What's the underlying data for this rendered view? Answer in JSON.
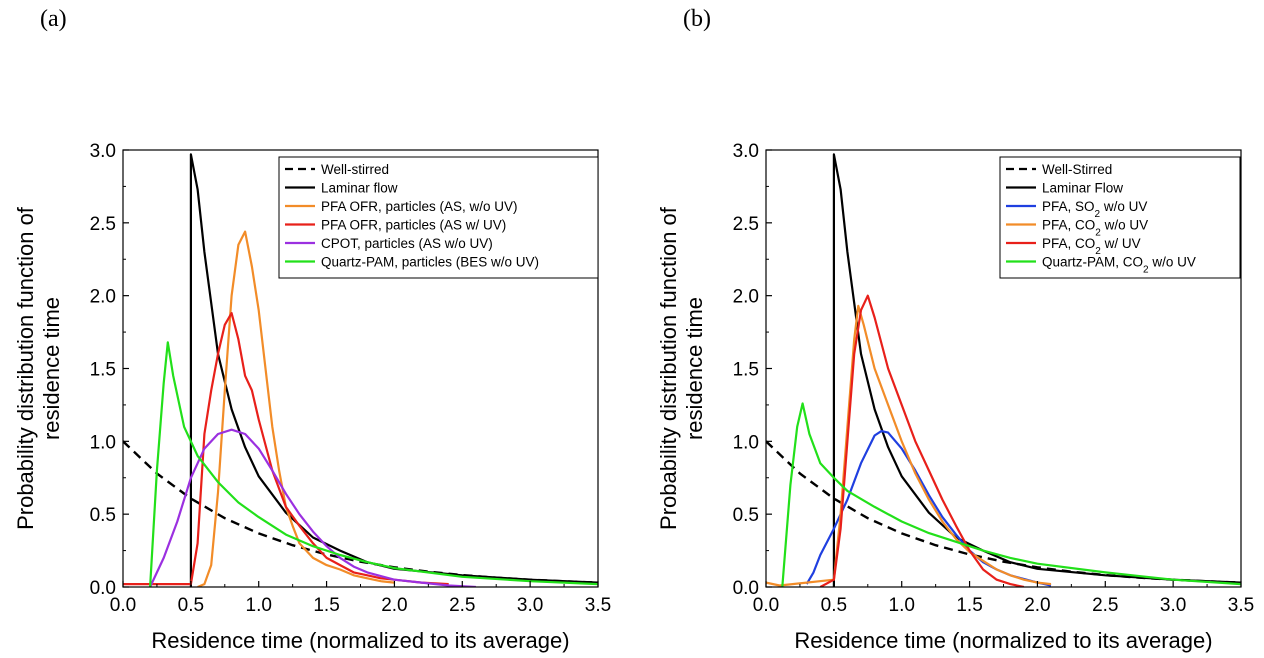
{
  "panels": [
    {
      "letter": "(a)",
      "chart_data": {
        "type": "line",
        "xlabel": "Residence time (normalized to its average)",
        "ylabel": [
          "Probability distribution function of",
          "residence time"
        ],
        "xlim": [
          0,
          3.5
        ],
        "ylim": [
          0,
          3.0
        ],
        "xticks": [
          0.0,
          0.5,
          1.0,
          1.5,
          2.0,
          2.5,
          3.0,
          3.5
        ],
        "yticks": [
          0.0,
          0.5,
          1.0,
          1.5,
          2.0,
          2.5,
          3.0
        ],
        "xtick_labels": [
          "0.0",
          "0.5",
          "1.0",
          "1.5",
          "2.0",
          "2.5",
          "3.0",
          "3.5"
        ],
        "ytick_labels": [
          "0.0",
          "0.5",
          "1.0",
          "1.5",
          "2.0",
          "2.5",
          "3.0"
        ],
        "grid": false,
        "legend_position": "top-right",
        "series": [
          {
            "name": "Well-stirred",
            "color": "#000000",
            "dash": true,
            "x": [
              0,
              0.25,
              0.5,
              0.75,
              1.0,
              1.25,
              1.5,
              1.75,
              2.0,
              2.25,
              2.5,
              2.75,
              3.0,
              3.25,
              3.5
            ],
            "y": [
              1.0,
              0.779,
              0.607,
              0.472,
              0.368,
              0.287,
              0.223,
              0.174,
              0.135,
              0.105,
              0.082,
              0.064,
              0.05,
              0.039,
              0.03
            ]
          },
          {
            "name": "Laminar flow",
            "color": "#000000",
            "dash": false,
            "x": [
              0.5,
              0.5,
              0.55,
              0.6,
              0.7,
              0.8,
              0.9,
              1.0,
              1.2,
              1.4,
              1.6,
              1.8,
              2.0,
              2.5,
              3.0,
              3.5
            ],
            "y": [
              0,
              2.97,
              2.73,
              2.3,
              1.6,
              1.22,
              0.96,
              0.76,
              0.51,
              0.34,
              0.25,
              0.17,
              0.125,
              0.08,
              0.05,
              0.03
            ]
          },
          {
            "name": "PFA OFR, particles (AS, w/o UV)",
            "color": "#f28c28",
            "dash": false,
            "x": [
              0.55,
              0.6,
              0.65,
              0.7,
              0.75,
              0.8,
              0.85,
              0.9,
              0.95,
              1.0,
              1.05,
              1.1,
              1.15,
              1.2,
              1.25,
              1.3,
              1.4,
              1.5,
              1.6,
              1.7,
              1.8,
              1.9,
              2.0
            ],
            "y": [
              0,
              0.02,
              0.15,
              0.65,
              1.35,
              2.0,
              2.35,
              2.44,
              2.2,
              1.9,
              1.5,
              1.1,
              0.8,
              0.55,
              0.42,
              0.3,
              0.2,
              0.15,
              0.12,
              0.08,
              0.06,
              0.04,
              0.03
            ]
          },
          {
            "name": "PFA OFR, particles (AS w/ UV)",
            "color": "#e8201a",
            "dash": false,
            "x": [
              0,
              0.5,
              0.55,
              0.6,
              0.65,
              0.7,
              0.75,
              0.8,
              0.85,
              0.9,
              0.95,
              1.0,
              1.1,
              1.2,
              1.3,
              1.4,
              1.5,
              1.6,
              1.7,
              1.8,
              1.9,
              2.0,
              2.2,
              2.4
            ],
            "y": [
              0.02,
              0.02,
              0.3,
              1.05,
              1.35,
              1.6,
              1.8,
              1.88,
              1.7,
              1.45,
              1.35,
              1.15,
              0.8,
              0.55,
              0.42,
              0.3,
              0.2,
              0.15,
              0.1,
              0.08,
              0.06,
              0.05,
              0.03,
              0.02
            ]
          },
          {
            "name": "CPOT, particles (AS w/o UV)",
            "color": "#9b30e0",
            "dash": false,
            "x": [
              0.2,
              0.3,
              0.4,
              0.5,
              0.6,
              0.7,
              0.8,
              0.9,
              1.0,
              1.1,
              1.2,
              1.3,
              1.4,
              1.5,
              1.6,
              1.7,
              1.8,
              2.0,
              2.2,
              2.4,
              2.6
            ],
            "y": [
              0,
              0.2,
              0.45,
              0.75,
              0.95,
              1.05,
              1.08,
              1.05,
              0.95,
              0.8,
              0.64,
              0.5,
              0.38,
              0.28,
              0.2,
              0.14,
              0.1,
              0.05,
              0.03,
              0.01,
              0
            ]
          },
          {
            "name": "Quartz-PAM, particles (BES w/o UV)",
            "color": "#22e01a",
            "dash": false,
            "x": [
              0.2,
              0.25,
              0.3,
              0.33,
              0.37,
              0.45,
              0.55,
              0.7,
              0.85,
              1.0,
              1.2,
              1.4,
              1.6,
              1.8,
              2.0,
              2.5,
              3.0,
              3.5
            ],
            "y": [
              0,
              0.8,
              1.4,
              1.68,
              1.45,
              1.1,
              0.9,
              0.72,
              0.58,
              0.48,
              0.36,
              0.28,
              0.22,
              0.17,
              0.13,
              0.07,
              0.04,
              0.02
            ]
          }
        ]
      }
    },
    {
      "letter": "(b)",
      "chart_data": {
        "type": "line",
        "xlabel": "Residence time (normalized to its average)",
        "ylabel": [
          "Probability distribution function of",
          "residence time"
        ],
        "xlim": [
          0,
          3.5
        ],
        "ylim": [
          0,
          3.0
        ],
        "xticks": [
          0.0,
          0.5,
          1.0,
          1.5,
          2.0,
          2.5,
          3.0,
          3.5
        ],
        "yticks": [
          0.0,
          0.5,
          1.0,
          1.5,
          2.0,
          2.5,
          3.0
        ],
        "xtick_labels": [
          "0.0",
          "0.5",
          "1.0",
          "1.5",
          "2.0",
          "2.5",
          "3.0",
          "3.5"
        ],
        "ytick_labels": [
          "0.0",
          "0.5",
          "1.0",
          "1.5",
          "2.0",
          "2.5",
          "3.0"
        ],
        "grid": false,
        "legend_position": "top-right",
        "series": [
          {
            "name": "Well-Stirred",
            "color": "#000000",
            "dash": true,
            "x": [
              0,
              0.25,
              0.5,
              0.75,
              1.0,
              1.25,
              1.5,
              1.75,
              2.0,
              2.25,
              2.5,
              2.75,
              3.0,
              3.25,
              3.5
            ],
            "y": [
              1.0,
              0.779,
              0.607,
              0.472,
              0.368,
              0.287,
              0.223,
              0.174,
              0.135,
              0.105,
              0.082,
              0.064,
              0.05,
              0.039,
              0.03
            ]
          },
          {
            "name": "Laminar Flow",
            "color": "#000000",
            "dash": false,
            "x": [
              0.5,
              0.5,
              0.55,
              0.6,
              0.7,
              0.8,
              0.9,
              1.0,
              1.2,
              1.4,
              1.6,
              1.8,
              2.0,
              2.5,
              3.0,
              3.5
            ],
            "y": [
              0,
              2.97,
              2.73,
              2.3,
              1.6,
              1.22,
              0.96,
              0.76,
              0.51,
              0.34,
              0.25,
              0.17,
              0.125,
              0.08,
              0.05,
              0.03
            ]
          },
          {
            "name_parts": [
              "PFA, SO",
              "2",
              " w/o UV"
            ],
            "name": "PFA, SO2 w/o UV",
            "color": "#1f3fe0",
            "dash": false,
            "x": [
              0.3,
              0.35,
              0.4,
              0.5,
              0.6,
              0.7,
              0.8,
              0.85,
              0.9,
              1.0,
              1.1,
              1.2,
              1.3,
              1.4,
              1.5,
              1.6,
              1.7,
              1.8,
              2.0,
              2.1
            ],
            "y": [
              0.02,
              0.1,
              0.22,
              0.4,
              0.6,
              0.85,
              1.04,
              1.07,
              1.06,
              0.95,
              0.8,
              0.63,
              0.48,
              0.36,
              0.25,
              0.17,
              0.12,
              0.08,
              0.03,
              0.01
            ]
          },
          {
            "name_parts": [
              "PFA, CO",
              "2",
              " w/o UV"
            ],
            "name": "PFA, CO2 w/o UV",
            "color": "#f28c28",
            "dash": false,
            "x": [
              0,
              0.1,
              0.5,
              0.55,
              0.6,
              0.65,
              0.68,
              0.72,
              0.8,
              0.9,
              1.0,
              1.1,
              1.2,
              1.3,
              1.4,
              1.5,
              1.6,
              1.7,
              1.8,
              1.9,
              2.0,
              2.1
            ],
            "y": [
              0.03,
              0.01,
              0.05,
              0.5,
              1.1,
              1.7,
              1.93,
              1.8,
              1.5,
              1.25,
              1.0,
              0.78,
              0.6,
              0.45,
              0.33,
              0.24,
              0.18,
              0.12,
              0.08,
              0.05,
              0.03,
              0.02
            ]
          },
          {
            "name_parts": [
              "PFA, CO",
              "2",
              " w/ UV"
            ],
            "name": "PFA, CO2 w/ UV",
            "color": "#e8201a",
            "dash": false,
            "x": [
              0.4,
              0.5,
              0.55,
              0.6,
              0.65,
              0.7,
              0.75,
              0.8,
              0.9,
              1.0,
              1.1,
              1.2,
              1.3,
              1.4,
              1.5,
              1.6,
              1.7,
              1.8,
              1.9
            ],
            "y": [
              0,
              0.05,
              0.4,
              1.0,
              1.6,
              1.9,
              2.0,
              1.85,
              1.5,
              1.25,
              1.0,
              0.8,
              0.6,
              0.42,
              0.25,
              0.12,
              0.05,
              0.02,
              0
            ]
          },
          {
            "name_parts": [
              "Quartz-PAM, CO",
              "2",
              " w/o UV"
            ],
            "name": "Quartz-PAM, CO2 w/o UV",
            "color": "#22e01a",
            "dash": false,
            "x": [
              0.12,
              0.18,
              0.23,
              0.27,
              0.32,
              0.4,
              0.5,
              0.6,
              0.8,
              1.0,
              1.2,
              1.4,
              1.6,
              1.8,
              2.0,
              2.5,
              3.0,
              3.5
            ],
            "y": [
              0,
              0.7,
              1.1,
              1.26,
              1.05,
              0.85,
              0.75,
              0.66,
              0.55,
              0.45,
              0.37,
              0.31,
              0.25,
              0.2,
              0.16,
              0.1,
              0.05,
              0.02
            ]
          }
        ]
      }
    }
  ]
}
